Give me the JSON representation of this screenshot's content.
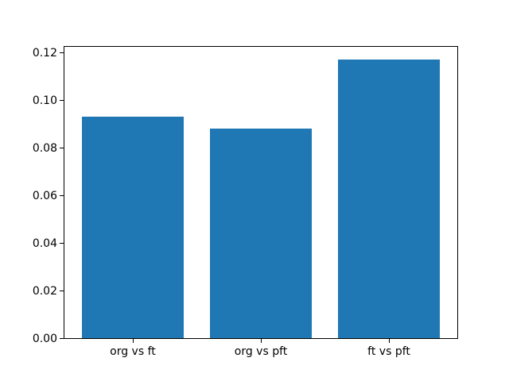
{
  "figure": {
    "background": "#ffffff",
    "text_color": "#000000"
  },
  "chart_data": {
    "type": "bar",
    "title": "",
    "xlabel": "",
    "ylabel": "",
    "categories": [
      "org vs ft",
      "org vs pft",
      "ft vs pft"
    ],
    "values": [
      0.093,
      0.088,
      0.117
    ],
    "bar_color": "#1f77b4",
    "bar_width_fraction": 0.8,
    "x_positions": [
      0,
      1,
      2
    ],
    "xlim": [
      -0.54,
      2.54
    ],
    "ylim": [
      0,
      0.123
    ],
    "yticks": [
      0.0,
      0.02,
      0.04,
      0.06,
      0.08,
      0.1,
      0.12
    ],
    "ytick_labels": [
      "0.00",
      "0.02",
      "0.04",
      "0.06",
      "0.08",
      "0.10",
      "0.12"
    ],
    "grid": false,
    "legend": null
  }
}
